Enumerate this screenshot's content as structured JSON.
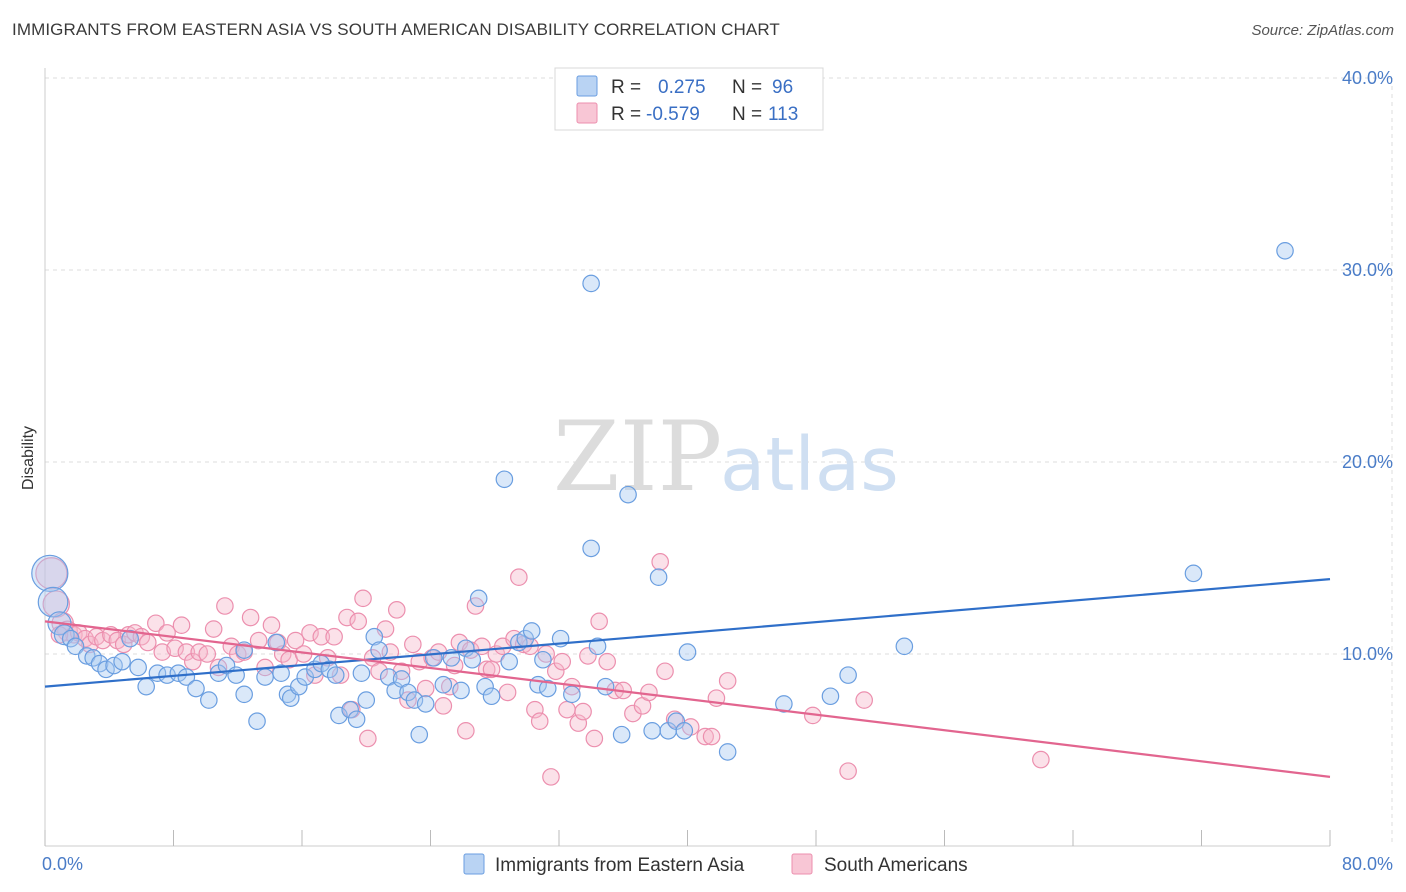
{
  "header": {
    "title": "IMMIGRANTS FROM EASTERN ASIA VS SOUTH AMERICAN DISABILITY CORRELATION CHART",
    "source": "Source: ZipAtlas.com"
  },
  "watermark": {
    "zip": "ZIP",
    "atlas": "atlas"
  },
  "legend": {
    "rows": [
      {
        "r_label": "R =",
        "r_value": "0.275",
        "n_label": "N =",
        "n_value": "96"
      },
      {
        "r_label": "R =",
        "r_value": "-0.579",
        "n_label": "N =",
        "n_value": "113"
      }
    ]
  },
  "bottom_legend": [
    "Immigrants from Eastern Asia",
    "South Americans"
  ],
  "colors": {
    "blue_fill": "#a8c8f0",
    "blue_stroke": "#6a9ee0",
    "blue_line": "#2f6fc9",
    "pink_fill": "#f6b8cb",
    "pink_stroke": "#ec8fae",
    "pink_line": "#e2658f",
    "grid": "#dddddd",
    "tick_text": "#4a7cc7"
  },
  "chart_data": {
    "type": "scatter",
    "xlabel": "",
    "ylabel": "Disability",
    "xlim": [
      0,
      80
    ],
    "ylim": [
      0,
      40
    ],
    "x_tick_labels": [
      "0.0%",
      "80.0%"
    ],
    "y_ticks": [
      10,
      20,
      30,
      40
    ],
    "y_tick_labels": [
      "10.0%",
      "20.0%",
      "30.0%",
      "40.0%"
    ],
    "grid": true,
    "legend_position": "top-center",
    "series": [
      {
        "name": "Immigrants from Eastern Asia",
        "r": 0.275,
        "n": 96,
        "trend": [
          [
            0,
            8.3
          ],
          [
            80,
            13.9
          ]
        ],
        "points": [
          [
            0.3,
            14.2,
            2.2
          ],
          [
            0.5,
            12.7,
            1.8
          ],
          [
            0.9,
            11.6,
            1.4
          ],
          [
            1.2,
            11.0,
            1.2
          ],
          [
            1.6,
            10.8,
            1.0
          ],
          [
            1.9,
            10.4,
            1.0
          ],
          [
            2.6,
            9.9,
            1.0
          ],
          [
            3.0,
            9.8,
            1.0
          ],
          [
            3.4,
            9.5,
            1.0
          ],
          [
            3.8,
            9.2,
            1.0
          ],
          [
            4.3,
            9.4,
            1.0
          ],
          [
            4.8,
            9.6,
            1.0
          ],
          [
            5.3,
            10.8,
            1.0
          ],
          [
            5.8,
            9.3,
            1.0
          ],
          [
            6.3,
            8.3,
            1.0
          ],
          [
            7.0,
            9.0,
            1.0
          ],
          [
            7.6,
            8.9,
            1.0
          ],
          [
            8.3,
            9.0,
            1.0
          ],
          [
            8.8,
            8.8,
            1.0
          ],
          [
            9.4,
            8.2,
            1.0
          ],
          [
            10.2,
            7.6,
            1.0
          ],
          [
            10.8,
            9.0,
            1.0
          ],
          [
            11.3,
            9.4,
            1.0
          ],
          [
            11.9,
            8.9,
            1.0
          ],
          [
            12.4,
            10.2,
            1.0
          ],
          [
            12.4,
            7.9,
            1.0
          ],
          [
            13.2,
            6.5,
            1.0
          ],
          [
            13.7,
            8.8,
            1.0
          ],
          [
            14.4,
            10.6,
            1.0
          ],
          [
            14.7,
            9.0,
            1.0
          ],
          [
            15.1,
            7.9,
            1.0
          ],
          [
            15.3,
            7.7,
            1.0
          ],
          [
            15.8,
            8.3,
            1.0
          ],
          [
            16.2,
            8.8,
            1.0
          ],
          [
            16.8,
            9.2,
            1.0
          ],
          [
            17.2,
            9.5,
            1.0
          ],
          [
            17.7,
            9.2,
            1.0
          ],
          [
            18.1,
            8.9,
            1.0
          ],
          [
            18.3,
            6.8,
            1.0
          ],
          [
            19.0,
            7.1,
            1.0
          ],
          [
            19.4,
            6.6,
            1.0
          ],
          [
            19.7,
            9.0,
            1.0
          ],
          [
            20.0,
            7.6,
            1.0
          ],
          [
            20.5,
            10.9,
            1.0
          ],
          [
            20.8,
            10.2,
            1.0
          ],
          [
            21.4,
            8.8,
            1.0
          ],
          [
            21.8,
            8.1,
            1.0
          ],
          [
            22.2,
            8.7,
            1.0
          ],
          [
            22.6,
            8.0,
            1.0
          ],
          [
            23.0,
            7.6,
            1.0
          ],
          [
            23.3,
            5.8,
            1.0
          ],
          [
            23.7,
            7.4,
            1.0
          ],
          [
            24.2,
            9.8,
            1.0
          ],
          [
            24.8,
            8.4,
            1.0
          ],
          [
            25.3,
            9.8,
            1.0
          ],
          [
            25.9,
            8.1,
            1.0
          ],
          [
            26.2,
            10.3,
            1.0
          ],
          [
            26.6,
            9.7,
            1.0
          ],
          [
            27.0,
            12.9,
            1.0
          ],
          [
            27.4,
            8.3,
            1.0
          ],
          [
            27.8,
            7.8,
            1.0
          ],
          [
            28.6,
            19.1,
            1.0
          ],
          [
            28.9,
            9.6,
            1.0
          ],
          [
            29.5,
            10.6,
            1.0
          ],
          [
            29.9,
            10.8,
            1.0
          ],
          [
            30.3,
            11.2,
            1.0
          ],
          [
            30.7,
            8.4,
            1.0
          ],
          [
            31.0,
            9.7,
            1.0
          ],
          [
            31.3,
            8.2,
            1.0
          ],
          [
            32.1,
            10.8,
            1.0
          ],
          [
            32.8,
            7.9,
            1.0
          ],
          [
            34.0,
            29.3,
            1.0
          ],
          [
            34.0,
            15.5,
            1.0
          ],
          [
            34.4,
            10.4,
            1.0
          ],
          [
            34.9,
            8.3,
            1.0
          ],
          [
            35.9,
            5.8,
            1.0
          ],
          [
            36.3,
            18.3,
            1.0
          ],
          [
            38.2,
            14.0,
            1.0
          ],
          [
            37.8,
            6.0,
            1.0
          ],
          [
            38.8,
            6.0,
            1.0
          ],
          [
            39.3,
            6.5,
            1.0
          ],
          [
            39.8,
            6.0,
            1.0
          ],
          [
            40.0,
            10.1,
            1.0
          ],
          [
            42.5,
            4.9,
            1.0
          ],
          [
            46.0,
            7.4,
            1.0
          ],
          [
            48.9,
            7.8,
            1.0
          ],
          [
            50.0,
            8.9,
            1.0
          ],
          [
            53.5,
            10.4,
            1.0
          ],
          [
            71.5,
            14.2,
            1.0
          ],
          [
            77.2,
            31.0,
            1.0
          ]
        ]
      },
      {
        "name": "South Americans",
        "r": -0.579,
        "n": 113,
        "trend": [
          [
            0,
            11.7
          ],
          [
            80,
            3.6
          ]
        ],
        "points": [
          [
            0.4,
            14.2,
            1.9
          ],
          [
            0.7,
            12.6,
            1.6
          ],
          [
            1.1,
            11.6,
            1.3
          ],
          [
            1.4,
            11.2,
            1.2
          ],
          [
            1.8,
            11.0,
            1.0
          ],
          [
            2.1,
            11.1,
            1.0
          ],
          [
            2.5,
            10.8,
            1.0
          ],
          [
            2.8,
            10.5,
            1.0
          ],
          [
            3.2,
            10.9,
            1.0
          ],
          [
            3.6,
            10.7,
            1.0
          ],
          [
            4.1,
            11.0,
            1.0
          ],
          [
            4.5,
            10.7,
            1.0
          ],
          [
            4.9,
            10.5,
            1.0
          ],
          [
            5.2,
            11.0,
            1.0
          ],
          [
            5.6,
            11.1,
            1.0
          ],
          [
            6.0,
            10.9,
            1.0
          ],
          [
            6.4,
            10.6,
            1.0
          ],
          [
            6.9,
            11.6,
            1.0
          ],
          [
            7.3,
            10.1,
            1.0
          ],
          [
            7.6,
            11.1,
            1.0
          ],
          [
            8.1,
            10.3,
            1.0
          ],
          [
            8.5,
            11.5,
            1.0
          ],
          [
            8.8,
            10.1,
            1.0
          ],
          [
            9.2,
            9.6,
            1.0
          ],
          [
            9.6,
            10.1,
            1.0
          ],
          [
            10.1,
            10.0,
            1.0
          ],
          [
            10.5,
            11.3,
            1.0
          ],
          [
            10.8,
            9.3,
            1.0
          ],
          [
            11.2,
            12.5,
            1.0
          ],
          [
            11.6,
            10.4,
            1.0
          ],
          [
            12.0,
            10.0,
            1.0
          ],
          [
            12.4,
            10.1,
            1.0
          ],
          [
            12.8,
            11.9,
            1.0
          ],
          [
            13.3,
            10.7,
            1.0
          ],
          [
            13.7,
            9.3,
            1.0
          ],
          [
            14.1,
            11.5,
            1.0
          ],
          [
            14.5,
            10.6,
            1.0
          ],
          [
            14.8,
            10.0,
            1.0
          ],
          [
            15.2,
            9.7,
            1.0
          ],
          [
            15.6,
            10.7,
            1.0
          ],
          [
            16.1,
            10.0,
            1.0
          ],
          [
            16.5,
            11.1,
            1.0
          ],
          [
            16.8,
            8.9,
            1.0
          ],
          [
            17.2,
            10.9,
            1.0
          ],
          [
            17.6,
            9.8,
            1.0
          ],
          [
            18.0,
            10.9,
            1.0
          ],
          [
            18.4,
            8.9,
            1.0
          ],
          [
            18.8,
            11.9,
            1.0
          ],
          [
            19.1,
            7.1,
            1.0
          ],
          [
            19.5,
            11.7,
            1.0
          ],
          [
            19.8,
            12.9,
            1.0
          ],
          [
            20.1,
            5.6,
            1.0
          ],
          [
            20.4,
            9.8,
            1.0
          ],
          [
            20.8,
            9.1,
            1.0
          ],
          [
            21.2,
            11.3,
            1.0
          ],
          [
            21.5,
            10.1,
            1.0
          ],
          [
            21.9,
            12.3,
            1.0
          ],
          [
            22.2,
            9.1,
            1.0
          ],
          [
            22.6,
            7.6,
            1.0
          ],
          [
            22.9,
            10.5,
            1.0
          ],
          [
            23.3,
            9.6,
            1.0
          ],
          [
            23.7,
            8.2,
            1.0
          ],
          [
            24.1,
            9.8,
            1.0
          ],
          [
            24.5,
            10.1,
            1.0
          ],
          [
            24.8,
            7.3,
            1.0
          ],
          [
            25.2,
            8.3,
            1.0
          ],
          [
            25.5,
            9.4,
            1.0
          ],
          [
            25.8,
            10.6,
            1.0
          ],
          [
            26.2,
            6.0,
            1.0
          ],
          [
            26.5,
            10.2,
            1.0
          ],
          [
            26.8,
            12.5,
            1.0
          ],
          [
            27.2,
            10.4,
            1.0
          ],
          [
            27.5,
            9.2,
            1.0
          ],
          [
            27.8,
            9.2,
            1.0
          ],
          [
            28.1,
            10.0,
            1.0
          ],
          [
            28.5,
            10.4,
            1.0
          ],
          [
            28.8,
            8.0,
            1.0
          ],
          [
            29.2,
            10.8,
            1.0
          ],
          [
            29.5,
            14.0,
            1.0
          ],
          [
            29.8,
            10.5,
            1.0
          ],
          [
            30.2,
            10.4,
            1.0
          ],
          [
            30.5,
            7.1,
            1.0
          ],
          [
            30.8,
            6.5,
            1.0
          ],
          [
            31.2,
            10.0,
            1.0
          ],
          [
            31.5,
            3.6,
            1.0
          ],
          [
            31.8,
            9.1,
            1.0
          ],
          [
            32.2,
            9.6,
            1.0
          ],
          [
            32.5,
            7.1,
            1.0
          ],
          [
            32.8,
            8.3,
            1.0
          ],
          [
            33.2,
            6.4,
            1.0
          ],
          [
            33.5,
            7.0,
            1.0
          ],
          [
            33.8,
            9.9,
            1.0
          ],
          [
            34.2,
            5.6,
            1.0
          ],
          [
            34.5,
            11.7,
            1.0
          ],
          [
            35.0,
            9.6,
            1.0
          ],
          [
            35.5,
            8.1,
            1.0
          ],
          [
            36.0,
            8.1,
            1.0
          ],
          [
            36.6,
            6.9,
            1.0
          ],
          [
            37.2,
            7.3,
            1.0
          ],
          [
            37.6,
            8.0,
            1.0
          ],
          [
            38.3,
            14.8,
            1.0
          ],
          [
            38.6,
            9.1,
            1.0
          ],
          [
            39.2,
            6.6,
            1.0
          ],
          [
            40.2,
            6.2,
            1.0
          ],
          [
            41.1,
            5.7,
            1.0
          ],
          [
            41.5,
            5.7,
            1.0
          ],
          [
            41.8,
            7.7,
            1.0
          ],
          [
            42.5,
            8.6,
            1.0
          ],
          [
            47.8,
            6.8,
            1.0
          ],
          [
            50.0,
            3.9,
            1.0
          ],
          [
            51.0,
            7.6,
            1.0
          ],
          [
            62.0,
            4.5,
            1.0
          ],
          [
            0.9,
            11.0,
            1.0
          ]
        ]
      }
    ]
  }
}
